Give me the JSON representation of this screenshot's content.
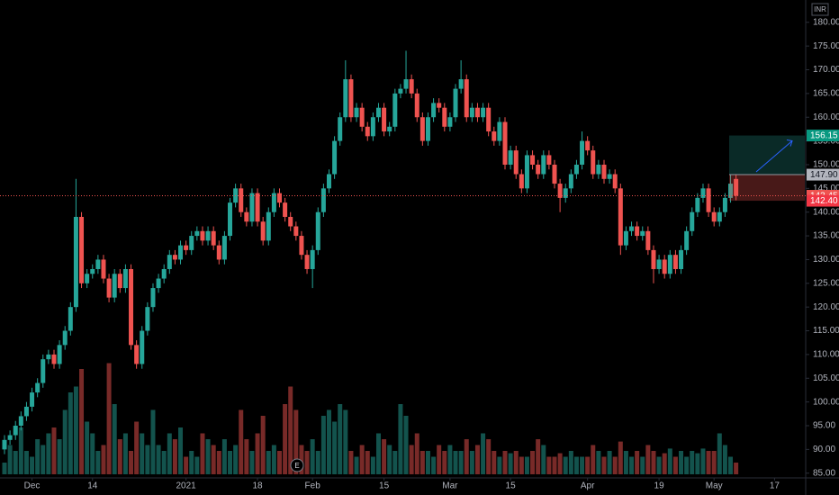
{
  "header": {
    "currency": "INR"
  },
  "chart_data": {
    "type": "candlestick",
    "open": [
      90,
      92,
      93,
      95,
      97,
      99,
      102,
      104,
      109,
      110,
      108,
      112,
      115,
      120,
      139,
      125,
      127,
      128,
      130,
      126,
      122,
      127,
      124,
      128,
      112,
      108,
      115,
      120,
      124,
      126,
      128,
      131,
      130,
      133,
      132,
      135,
      136,
      134,
      136,
      133,
      130,
      135,
      142,
      145,
      140,
      138,
      144,
      138,
      134,
      140,
      144,
      142,
      139,
      137,
      135,
      131,
      128,
      132,
      140,
      145,
      148,
      155,
      160,
      168,
      160,
      162,
      158,
      156,
      160,
      162,
      157,
      158,
      165,
      166,
      168,
      165,
      160,
      155,
      160,
      163,
      162,
      158,
      160,
      166,
      168,
      160,
      162,
      160,
      162,
      157,
      155,
      159,
      150,
      153,
      148,
      145,
      152,
      150,
      148,
      152,
      150,
      146,
      143,
      145,
      148,
      150,
      155,
      153,
      148,
      150,
      147,
      148,
      145,
      133,
      136,
      137,
      135,
      136,
      132,
      128,
      130,
      127,
      131,
      128,
      132,
      136,
      140,
      143,
      145,
      140,
      138,
      140,
      143,
      147
    ],
    "high": [
      93,
      94,
      96,
      98,
      100,
      103,
      105,
      110,
      111,
      111,
      113,
      116,
      121,
      147,
      140,
      128,
      129,
      131,
      131,
      127,
      128,
      128,
      129,
      129,
      113,
      116,
      121,
      125,
      127,
      129,
      132,
      132,
      134,
      134,
      136,
      137,
      137,
      137,
      137,
      134,
      136,
      143,
      146,
      146,
      141,
      145,
      145,
      139,
      141,
      145,
      145,
      143,
      140,
      138,
      136,
      132,
      133,
      141,
      146,
      149,
      156,
      161,
      172,
      169,
      163,
      163,
      159,
      161,
      163,
      163,
      159,
      166,
      167,
      174,
      169,
      166,
      161,
      161,
      164,
      164,
      163,
      161,
      167,
      172,
      169,
      163,
      163,
      163,
      163,
      158,
      160,
      160,
      154,
      154,
      149,
      153,
      153,
      151,
      153,
      153,
      151,
      147,
      146,
      149,
      151,
      157,
      156,
      154,
      151,
      151,
      149,
      149,
      146,
      137,
      138,
      138,
      137,
      137,
      133,
      131,
      131,
      132,
      132,
      133,
      137,
      141,
      144,
      146,
      146,
      141,
      141,
      144,
      148,
      148
    ],
    "low": [
      89,
      91,
      92,
      94,
      96,
      98,
      101,
      103,
      108,
      107,
      107,
      111,
      114,
      119,
      124,
      124,
      126,
      127,
      125,
      121,
      121,
      123,
      123,
      111,
      107,
      107,
      114,
      119,
      123,
      125,
      127,
      129,
      129,
      131,
      131,
      134,
      133,
      133,
      132,
      129,
      129,
      134,
      141,
      139,
      137,
      137,
      137,
      133,
      133,
      139,
      141,
      138,
      136,
      134,
      130,
      127,
      124,
      131,
      139,
      144,
      147,
      154,
      159,
      159,
      159,
      157,
      155,
      155,
      159,
      156,
      156,
      157,
      164,
      165,
      164,
      159,
      154,
      154,
      159,
      161,
      157,
      157,
      159,
      165,
      159,
      159,
      159,
      159,
      156,
      154,
      154,
      149,
      149,
      147,
      144,
      144,
      149,
      147,
      147,
      149,
      145,
      140,
      142,
      144,
      147,
      149,
      152,
      147,
      147,
      146,
      146,
      144,
      131,
      132,
      135,
      134,
      134,
      131,
      125,
      127,
      126,
      126,
      127,
      127,
      131,
      135,
      139,
      142,
      139,
      137,
      137,
      139,
      142,
      142.5
    ],
    "close": [
      92,
      93,
      95,
      97,
      99,
      102,
      104,
      109,
      110,
      108,
      112,
      115,
      120,
      139,
      125,
      127,
      128,
      130,
      126,
      122,
      127,
      124,
      128,
      112,
      108,
      115,
      120,
      124,
      126,
      128,
      131,
      130,
      133,
      132,
      135,
      136,
      134,
      136,
      133,
      130,
      135,
      142,
      145,
      140,
      138,
      144,
      138,
      134,
      140,
      144,
      142,
      139,
      137,
      135,
      131,
      128,
      132,
      140,
      145,
      148,
      155,
      160,
      168,
      160,
      162,
      158,
      156,
      160,
      162,
      157,
      158,
      165,
      166,
      168,
      165,
      160,
      155,
      160,
      163,
      162,
      158,
      160,
      166,
      168,
      160,
      162,
      160,
      162,
      157,
      155,
      159,
      150,
      153,
      148,
      145,
      152,
      150,
      148,
      152,
      150,
      146,
      143,
      145,
      148,
      150,
      155,
      153,
      148,
      150,
      147,
      148,
      145,
      133,
      136,
      137,
      135,
      136,
      132,
      128,
      130,
      127,
      131,
      128,
      132,
      136,
      140,
      143,
      145,
      140,
      138,
      140,
      143,
      146,
      143.45
    ],
    "volume": [
      10,
      25,
      20,
      40,
      20,
      15,
      30,
      25,
      35,
      40,
      30,
      55,
      70,
      75,
      90,
      45,
      35,
      20,
      25,
      95,
      60,
      30,
      35,
      20,
      45,
      35,
      25,
      55,
      25,
      20,
      35,
      30,
      40,
      15,
      20,
      15,
      35,
      30,
      25,
      20,
      30,
      20,
      25,
      55,
      30,
      20,
      35,
      50,
      20,
      25,
      20,
      60,
      75,
      55,
      25,
      20,
      30,
      20,
      50,
      55,
      45,
      60,
      55,
      20,
      15,
      25,
      20,
      15,
      35,
      30,
      25,
      20,
      60,
      50,
      25,
      35,
      20,
      20,
      15,
      25,
      20,
      25,
      20,
      20,
      30,
      20,
      25,
      35,
      30,
      20,
      15,
      20,
      18,
      20,
      15,
      15,
      20,
      30,
      25,
      15,
      15,
      18,
      15,
      20,
      15,
      15,
      15,
      25,
      20,
      15,
      20,
      15,
      28,
      20,
      15,
      20,
      15,
      25,
      20,
      15,
      18,
      22,
      15,
      20,
      15,
      20,
      18,
      22,
      20,
      20,
      35,
      25,
      15,
      10
    ],
    "up_color": "#26a69a",
    "down_color": "#ef5350",
    "ylim": [
      84,
      184.7
    ],
    "yticks": [
      {
        "value": 85,
        "label": "85.00"
      },
      {
        "value": 90,
        "label": "90.00"
      },
      {
        "value": 95,
        "label": "95.00"
      },
      {
        "value": 100,
        "label": "100.00"
      },
      {
        "value": 105,
        "label": "105.00"
      },
      {
        "value": 110,
        "label": "110.00"
      },
      {
        "value": 115,
        "label": "115.00"
      },
      {
        "value": 120,
        "label": "120.00"
      },
      {
        "value": 125,
        "label": "125.00"
      },
      {
        "value": 130,
        "label": "130.00"
      },
      {
        "value": 135,
        "label": "135.00"
      },
      {
        "value": 140,
        "label": "140.00"
      },
      {
        "value": 145,
        "label": "145.00"
      },
      {
        "value": 150,
        "label": "150.00"
      },
      {
        "value": 155,
        "label": "155.00"
      },
      {
        "value": 160,
        "label": "160.00"
      },
      {
        "value": 165,
        "label": "165.00"
      },
      {
        "value": 170,
        "label": "170.00"
      },
      {
        "value": 175,
        "label": "175.00"
      },
      {
        "value": 180,
        "label": "180.00"
      }
    ],
    "xticks": [
      {
        "value": 5,
        "label": "Dec"
      },
      {
        "value": 16,
        "label": "14"
      },
      {
        "value": 33,
        "label": "2021"
      },
      {
        "value": 46,
        "label": "18"
      },
      {
        "value": 56,
        "label": "Feb"
      },
      {
        "value": 69,
        "label": "15"
      },
      {
        "value": 81,
        "label": "Mar"
      },
      {
        "value": 92,
        "label": "15"
      },
      {
        "value": 106,
        "label": "Apr"
      },
      {
        "value": 119,
        "label": "19"
      },
      {
        "value": 129,
        "label": "May"
      },
      {
        "value": 140,
        "label": "17"
      }
    ],
    "target": 156.15,
    "entry": {
      "value": 147.9,
      "label": "147.90"
    },
    "last_price": 143.45,
    "stop": {
      "value": 142.4,
      "label": "142.40"
    },
    "event": "E"
  }
}
